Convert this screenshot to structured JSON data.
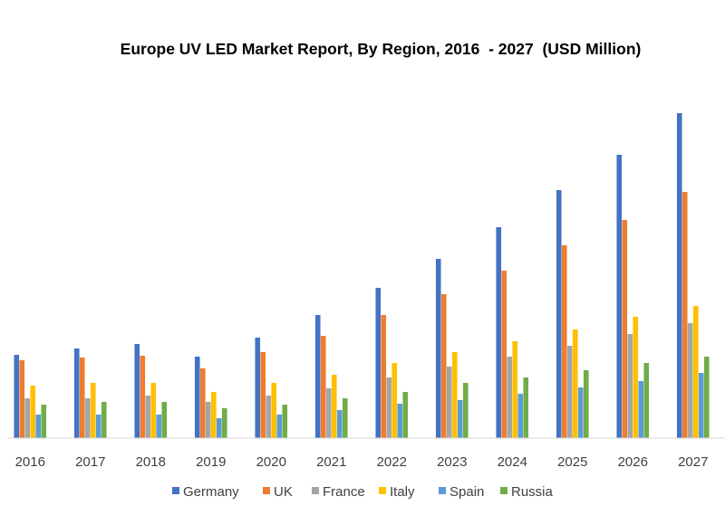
{
  "chart_data": {
    "type": "bar",
    "title": "Europe UV LED Market Report, By Region, 2016  - 2027  (USD Million)",
    "xlabel": "",
    "ylabel": "",
    "categories": [
      "2016",
      "2017",
      "2018",
      "2019",
      "2020",
      "2021",
      "2022",
      "2023",
      "2024",
      "2025",
      "2026",
      "2027"
    ],
    "ylim": [
      0,
      360
    ],
    "grid": false,
    "legend_position": "bottom",
    "series": [
      {
        "name": "Germany",
        "color": "#4472C4",
        "values": [
          92,
          99,
          104,
          90,
          111,
          136,
          166,
          198,
          233,
          274,
          313,
          359
        ]
      },
      {
        "name": "UK",
        "color": "#ED7D31",
        "values": [
          86,
          89,
          91,
          77,
          95,
          113,
          136,
          159,
          185,
          213,
          241,
          272
        ]
      },
      {
        "name": "France",
        "color": "#A5A5A5",
        "values": [
          44,
          44,
          47,
          40,
          47,
          55,
          67,
          79,
          90,
          102,
          115,
          127
        ]
      },
      {
        "name": "Italy",
        "color": "#FFC000",
        "values": [
          58,
          61,
          61,
          51,
          61,
          70,
          83,
          95,
          107,
          120,
          134,
          146
        ]
      },
      {
        "name": "Spain",
        "color": "#5B9BD5",
        "values": [
          26,
          26,
          26,
          22,
          26,
          31,
          38,
          42,
          49,
          56,
          63,
          72
        ]
      },
      {
        "name": "Russia",
        "color": "#70AD47",
        "values": [
          37,
          40,
          40,
          33,
          37,
          44,
          51,
          61,
          67,
          75,
          83,
          90
        ]
      }
    ]
  }
}
